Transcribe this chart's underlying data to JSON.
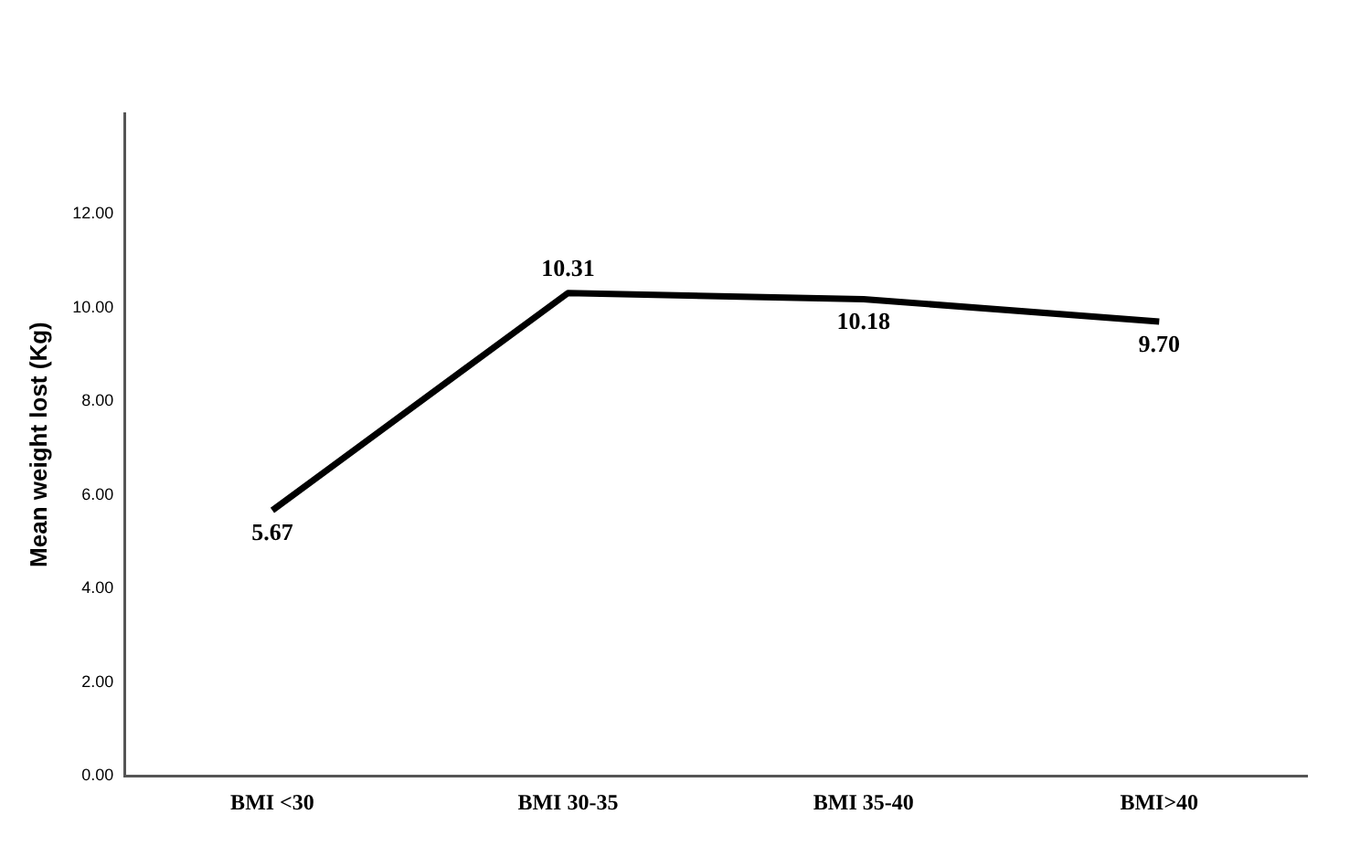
{
  "chart_data": {
    "type": "line",
    "ylabel": "Mean weight lost (Kg)",
    "categories": [
      "BMI <30",
      "BMI 30-35",
      "BMI 35-40",
      "BMI>40"
    ],
    "series": [
      {
        "color": "#000000",
        "values": [
          5.67,
          10.31,
          10.18,
          9.7
        ],
        "value_labels": [
          "5.67",
          "10.31",
          "10.18",
          "9.70"
        ]
      }
    ],
    "ylim": [
      0,
      14.15
    ],
    "yticks": [
      {
        "value": 0,
        "label": "0.00"
      },
      {
        "value": 2,
        "label": "2.00"
      },
      {
        "value": 4,
        "label": "4.00"
      },
      {
        "value": 6,
        "label": "6.00"
      },
      {
        "value": 8,
        "label": "8.00"
      },
      {
        "value": 10,
        "label": "10.00"
      },
      {
        "value": 12,
        "label": "12.00"
      }
    ],
    "grid": false,
    "legend": false,
    "marker": "none",
    "line_style": "solid"
  }
}
